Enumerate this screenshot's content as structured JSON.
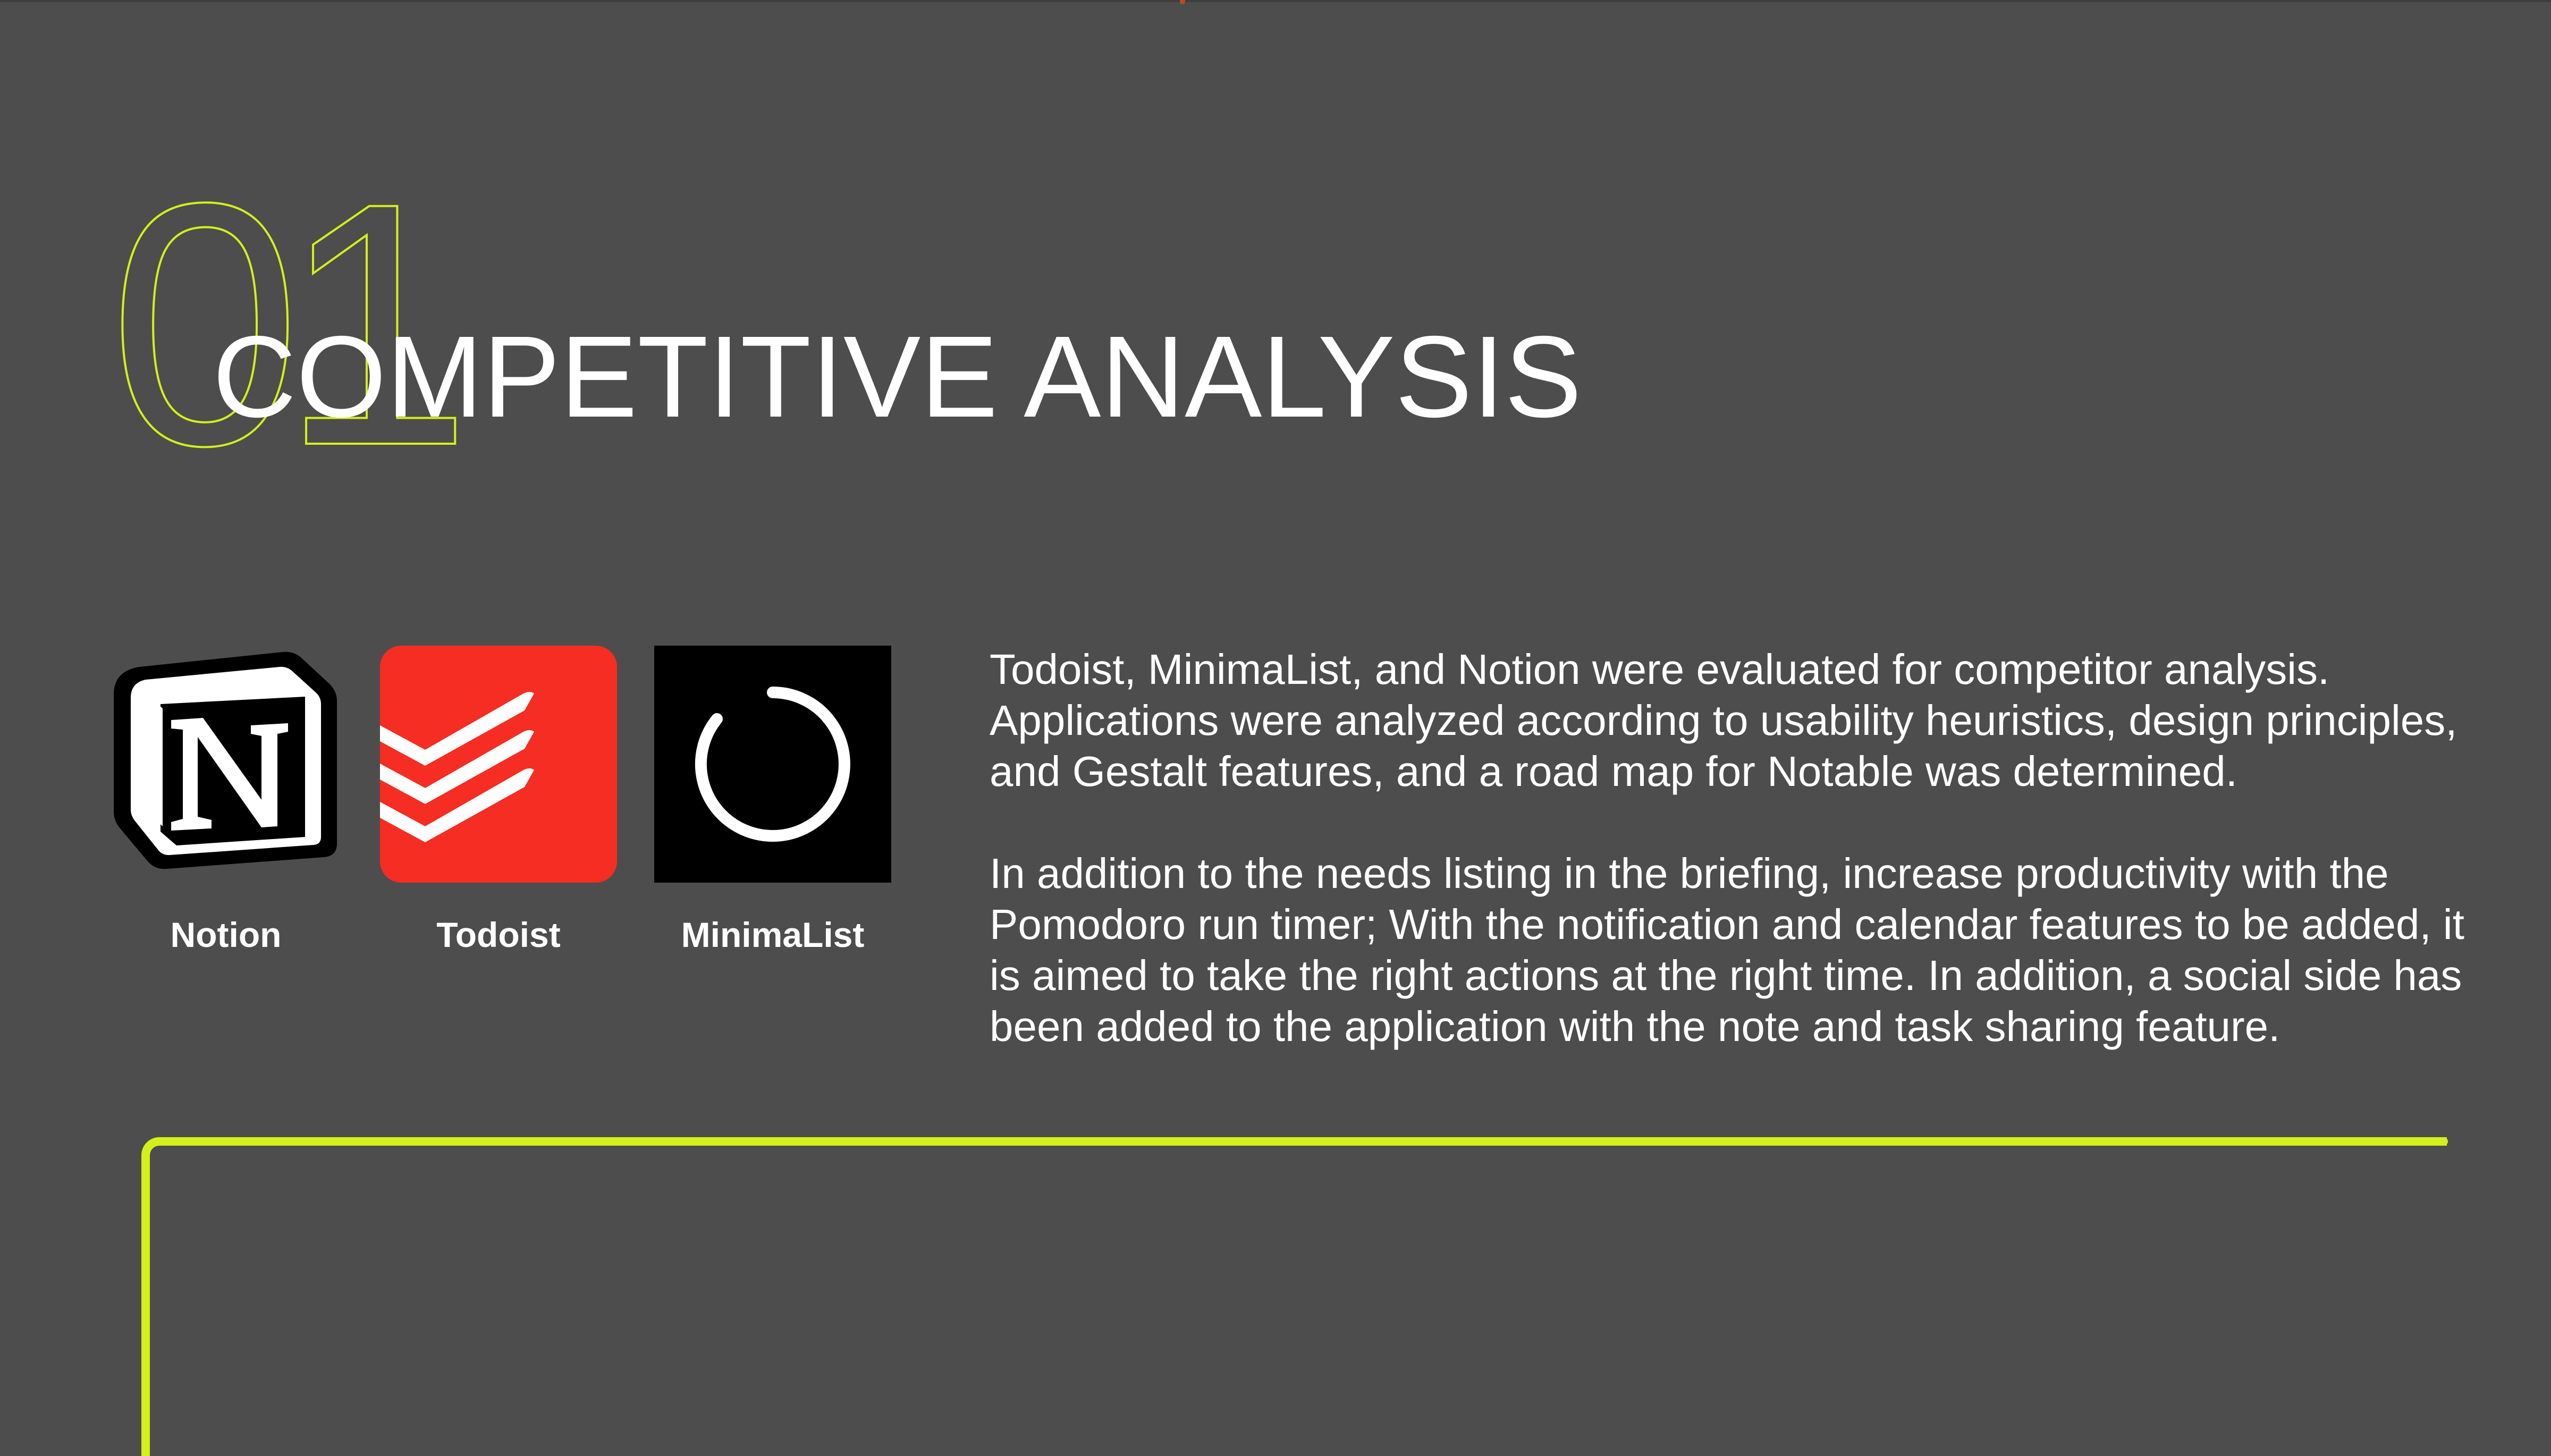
{
  "section": {
    "number": "01",
    "title": "COMPETITIVE ANALYSIS"
  },
  "colors": {
    "background": "#4d4d4d",
    "accent": "#d4f01a",
    "todoist_red": "#f62d22",
    "top_accent": "#c0471f"
  },
  "competitors": [
    {
      "name": "Notion",
      "icon": "notion-logo-icon"
    },
    {
      "name": "Todoist",
      "icon": "todoist-logo-icon"
    },
    {
      "name": "MinimaList",
      "icon": "minimalist-logo-icon"
    }
  ],
  "description": {
    "paragraph_1": "Todoist, MinimaList, and Notion were evaluated for competitor analysis. Applications were analyzed according to usability heuristics, design principles, and Gestalt features, and a road map for Notable was determined.",
    "paragraph_2": "In addition to the needs listing in the briefing, increase productivity with the Pomodoro run timer; With the notification and calendar features to be added, it is aimed to take the right actions at the right time. In addition, a social side has been added to the application with the note and task sharing feature."
  }
}
